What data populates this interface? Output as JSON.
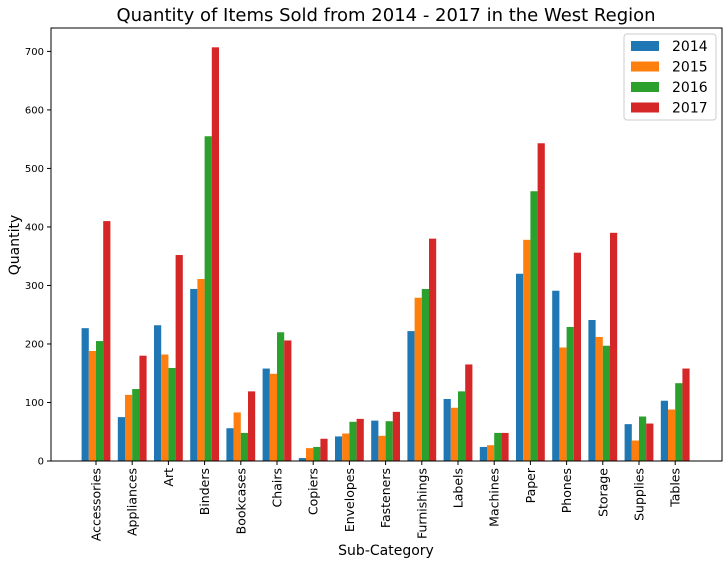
{
  "chart_data": {
    "type": "bar",
    "title": "Quantity of Items Sold from 2014 - 2017 in the West Region",
    "xlabel": "Sub-Category",
    "ylabel": "Quantity",
    "ylim": [
      0,
      740
    ],
    "yticks": [
      0,
      100,
      200,
      300,
      400,
      500,
      600,
      700
    ],
    "grid": false,
    "legend_position": "top-right",
    "categories": [
      "Accessories",
      "Appliances",
      "Art",
      "Binders",
      "Bookcases",
      "Chairs",
      "Copiers",
      "Envelopes",
      "Fasteners",
      "Furnishings",
      "Labels",
      "Machines",
      "Paper",
      "Phones",
      "Storage",
      "Supplies",
      "Tables"
    ],
    "series": [
      {
        "name": "2014",
        "color": "#1f77b4",
        "values": [
          227,
          75,
          232,
          294,
          56,
          158,
          5,
          42,
          69,
          222,
          106,
          24,
          320,
          291,
          241,
          63,
          103
        ]
      },
      {
        "name": "2015",
        "color": "#ff7f0e",
        "values": [
          188,
          113,
          182,
          311,
          83,
          149,
          22,
          47,
          43,
          279,
          91,
          27,
          378,
          194,
          212,
          35,
          88
        ]
      },
      {
        "name": "2016",
        "color": "#2ca02c",
        "values": [
          205,
          123,
          159,
          555,
          48,
          220,
          24,
          67,
          68,
          294,
          119,
          48,
          461,
          229,
          197,
          76,
          133
        ]
      },
      {
        "name": "2017",
        "color": "#d62728",
        "values": [
          410,
          180,
          352,
          707,
          119,
          206,
          38,
          72,
          84,
          380,
          165,
          48,
          543,
          356,
          390,
          64,
          158
        ]
      }
    ]
  }
}
